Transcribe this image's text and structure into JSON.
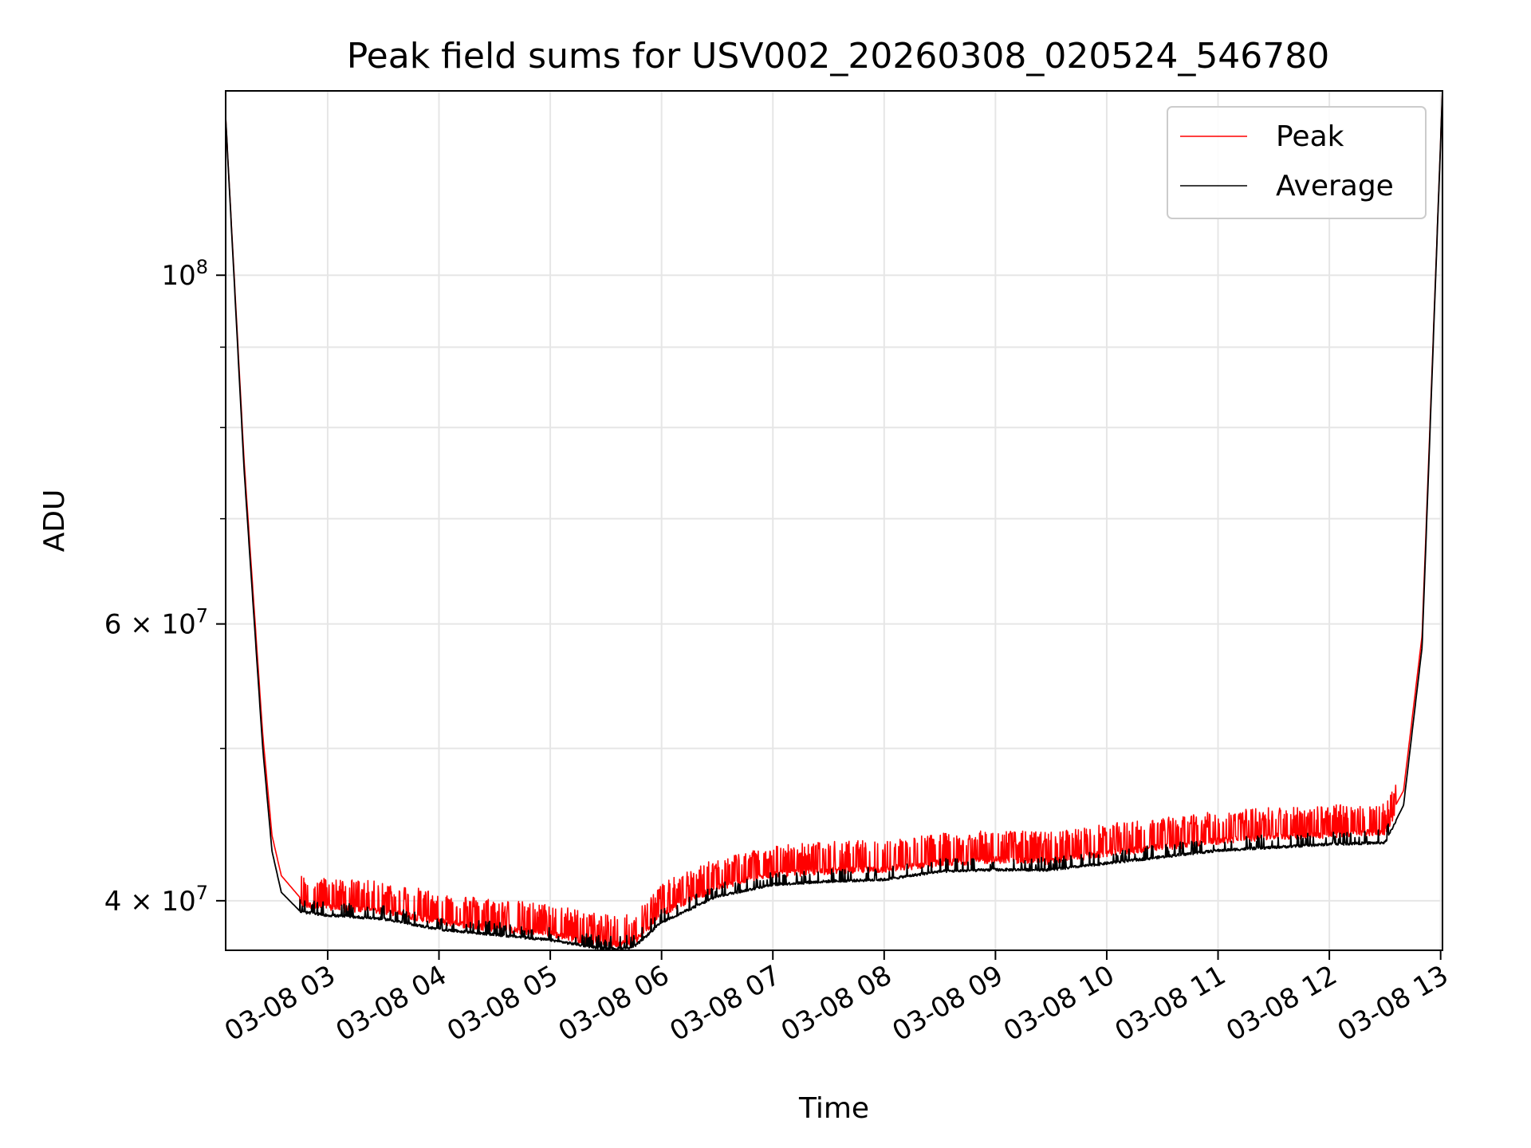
{
  "chart_data": {
    "type": "line",
    "title": "Peak field sums for USV002_20260308_020524_546780",
    "xlabel": "Time",
    "ylabel": "ADU",
    "x_scale": "time",
    "y_scale": "log",
    "xlim": [
      "2026-03-08 02:05",
      "2026-03-08 13:01"
    ],
    "ylim": [
      37200000,
      131000000
    ],
    "x_ticks": [
      "03-08 03",
      "03-08 04",
      "03-08 05",
      "03-08 06",
      "03-08 07",
      "03-08 08",
      "03-08 09",
      "03-08 10",
      "03-08 11",
      "03-08 12",
      "03-08 13"
    ],
    "x_tick_times": [
      "2026-03-08 03:00",
      "2026-03-08 04:00",
      "2026-03-08 05:00",
      "2026-03-08 06:00",
      "2026-03-08 07:00",
      "2026-03-08 08:00",
      "2026-03-08 09:00",
      "2026-03-08 10:00",
      "2026-03-08 11:00",
      "2026-03-08 12:00",
      "2026-03-08 13:00"
    ],
    "y_ticks": [
      {
        "value": 100000000,
        "base": "10",
        "exp": "8"
      },
      {
        "value": 60000000,
        "base": "6 × 10",
        "exp": "7"
      },
      {
        "value": 40000000,
        "base": "4 × 10",
        "exp": "7"
      }
    ],
    "y_minor_ticks": [
      50000000,
      70000000,
      80000000,
      90000000
    ],
    "grid": true,
    "legend_position": "top-right",
    "series": [
      {
        "name": "Peak",
        "color": "#ff0000",
        "x": [
          "2026-03-08 02:05",
          "2026-03-08 02:15",
          "2026-03-08 02:25",
          "2026-03-08 02:30",
          "2026-03-08 02:35",
          "2026-03-08 02:45",
          "2026-03-08 03:00",
          "2026-03-08 03:30",
          "2026-03-08 04:00",
          "2026-03-08 04:30",
          "2026-03-08 05:00",
          "2026-03-08 05:30",
          "2026-03-08 05:45",
          "2026-03-08 06:00",
          "2026-03-08 06:30",
          "2026-03-08 07:00",
          "2026-03-08 07:30",
          "2026-03-08 08:00",
          "2026-03-08 08:30",
          "2026-03-08 09:00",
          "2026-03-08 09:30",
          "2026-03-08 10:00",
          "2026-03-08 10:30",
          "2026-03-08 11:00",
          "2026-03-08 11:30",
          "2026-03-08 12:00",
          "2026-03-08 12:30",
          "2026-03-08 12:40",
          "2026-03-08 12:50",
          "2026-03-08 13:01"
        ],
        "values": [
          126000000,
          76000000,
          51000000,
          44000000,
          41500000,
          40200000,
          40000000,
          39800000,
          39200000,
          38800000,
          38500000,
          37900000,
          38000000,
          39700000,
          41200000,
          42000000,
          42200000,
          42300000,
          42700000,
          42900000,
          42800000,
          43300000,
          43700000,
          44100000,
          44400000,
          44500000,
          44700000,
          47000000,
          59000000,
          131000000
        ]
      },
      {
        "name": "Average",
        "color": "#000000",
        "x": [
          "2026-03-08 02:05",
          "2026-03-08 02:15",
          "2026-03-08 02:25",
          "2026-03-08 02:30",
          "2026-03-08 02:35",
          "2026-03-08 02:45",
          "2026-03-08 03:00",
          "2026-03-08 03:30",
          "2026-03-08 04:00",
          "2026-03-08 04:30",
          "2026-03-08 05:00",
          "2026-03-08 05:30",
          "2026-03-08 05:45",
          "2026-03-08 06:00",
          "2026-03-08 06:30",
          "2026-03-08 07:00",
          "2026-03-08 07:30",
          "2026-03-08 08:00",
          "2026-03-08 08:30",
          "2026-03-08 09:00",
          "2026-03-08 09:30",
          "2026-03-08 10:00",
          "2026-03-08 10:30",
          "2026-03-08 11:00",
          "2026-03-08 11:30",
          "2026-03-08 12:00",
          "2026-03-08 12:30",
          "2026-03-08 12:40",
          "2026-03-08 12:50",
          "2026-03-08 13:01"
        ],
        "values": [
          126000000,
          75000000,
          50000000,
          43000000,
          40500000,
          39400000,
          39200000,
          39000000,
          38400000,
          38100000,
          37800000,
          37300000,
          37400000,
          38800000,
          40300000,
          41000000,
          41200000,
          41300000,
          41800000,
          41900000,
          41900000,
          42300000,
          42700000,
          43100000,
          43300000,
          43500000,
          43600000,
          46000000,
          58000000,
          131000000
        ]
      }
    ]
  }
}
